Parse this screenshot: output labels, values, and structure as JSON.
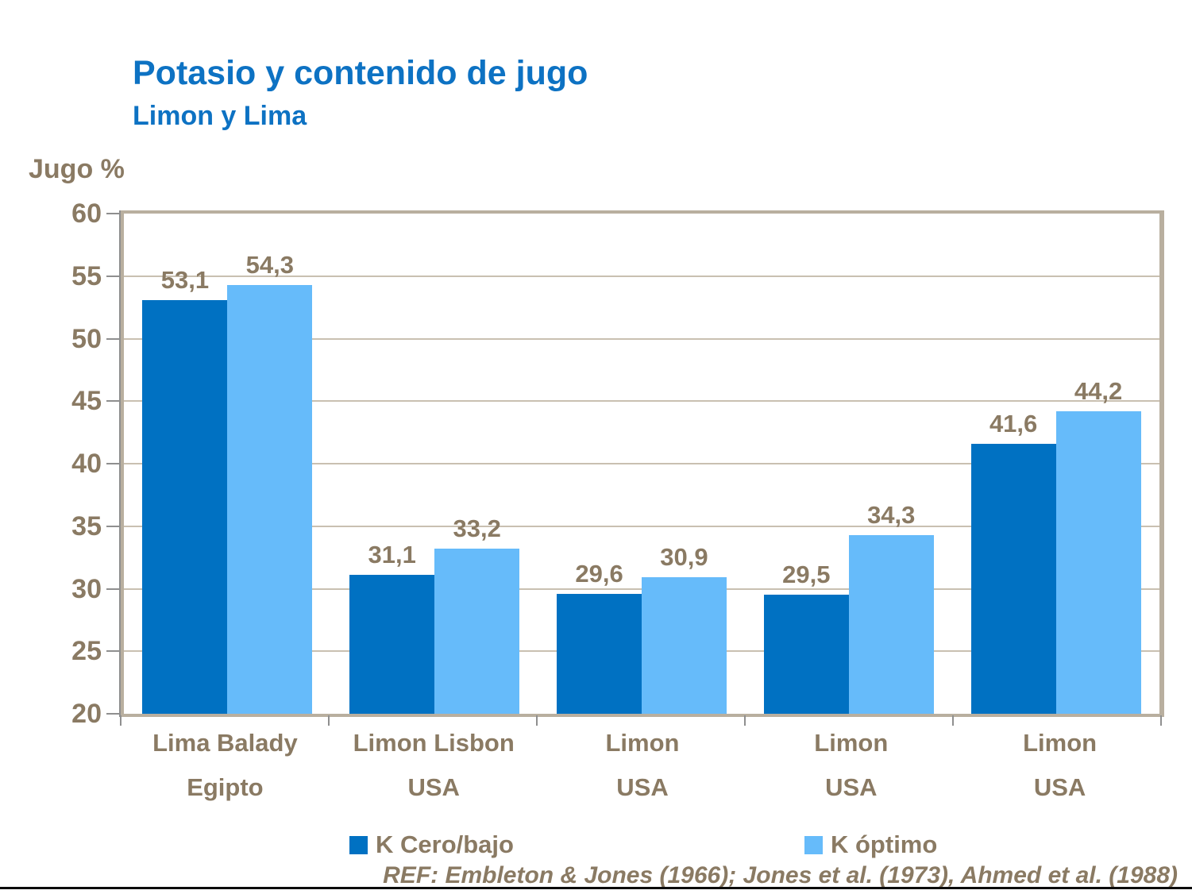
{
  "title": "Potasio y contenido de jugo",
  "subtitle": "Limon y Lima",
  "y_axis_title": "Jugo %",
  "footer": "REF: Embleton & Jones (1966); Jones et al. (1973), Ahmed et al. (1988)",
  "colors": {
    "title_blue": "#0d72c3",
    "text_brown": "#8a7a63",
    "series_dark_blue": "#0071c2",
    "series_light_blue": "#66bbfa",
    "gridline": "#c9c0b1",
    "plot_frame": "#b9af9f"
  },
  "chart_data": {
    "type": "bar",
    "title": "Potasio y contenido de jugo — Limon y Lima",
    "xlabel": "",
    "ylabel": "Jugo %",
    "ylim": [
      20,
      60
    ],
    "yticks": [
      20,
      25,
      30,
      35,
      40,
      45,
      50,
      55,
      60
    ],
    "ytick_labels": [
      "20",
      "25",
      "30",
      "35",
      "40",
      "45",
      "50",
      "55",
      "60"
    ],
    "grid": true,
    "legend_position": "bottom",
    "categories": [
      {
        "line1": "Lima Balady",
        "line2": "Egipto"
      },
      {
        "line1": "Limon Lisbon",
        "line2": "USA"
      },
      {
        "line1": "Limon",
        "line2": "USA"
      },
      {
        "line1": "Limon",
        "line2": "USA"
      },
      {
        "line1": "Limon",
        "line2": "USA"
      }
    ],
    "series": [
      {
        "name": "K Cero/bajo",
        "color": "#0071c2",
        "values": [
          53.1,
          31.1,
          29.6,
          29.5,
          41.6
        ],
        "value_labels": [
          "53,1",
          "31,1",
          "29,6",
          "29,5",
          "41,6"
        ]
      },
      {
        "name": "K óptimo",
        "color": "#66bbfa",
        "values": [
          54.3,
          33.2,
          30.9,
          34.3,
          44.2
        ],
        "value_labels": [
          "54,3",
          "33,2",
          "30,9",
          "34,3",
          "44,2"
        ]
      }
    ]
  }
}
